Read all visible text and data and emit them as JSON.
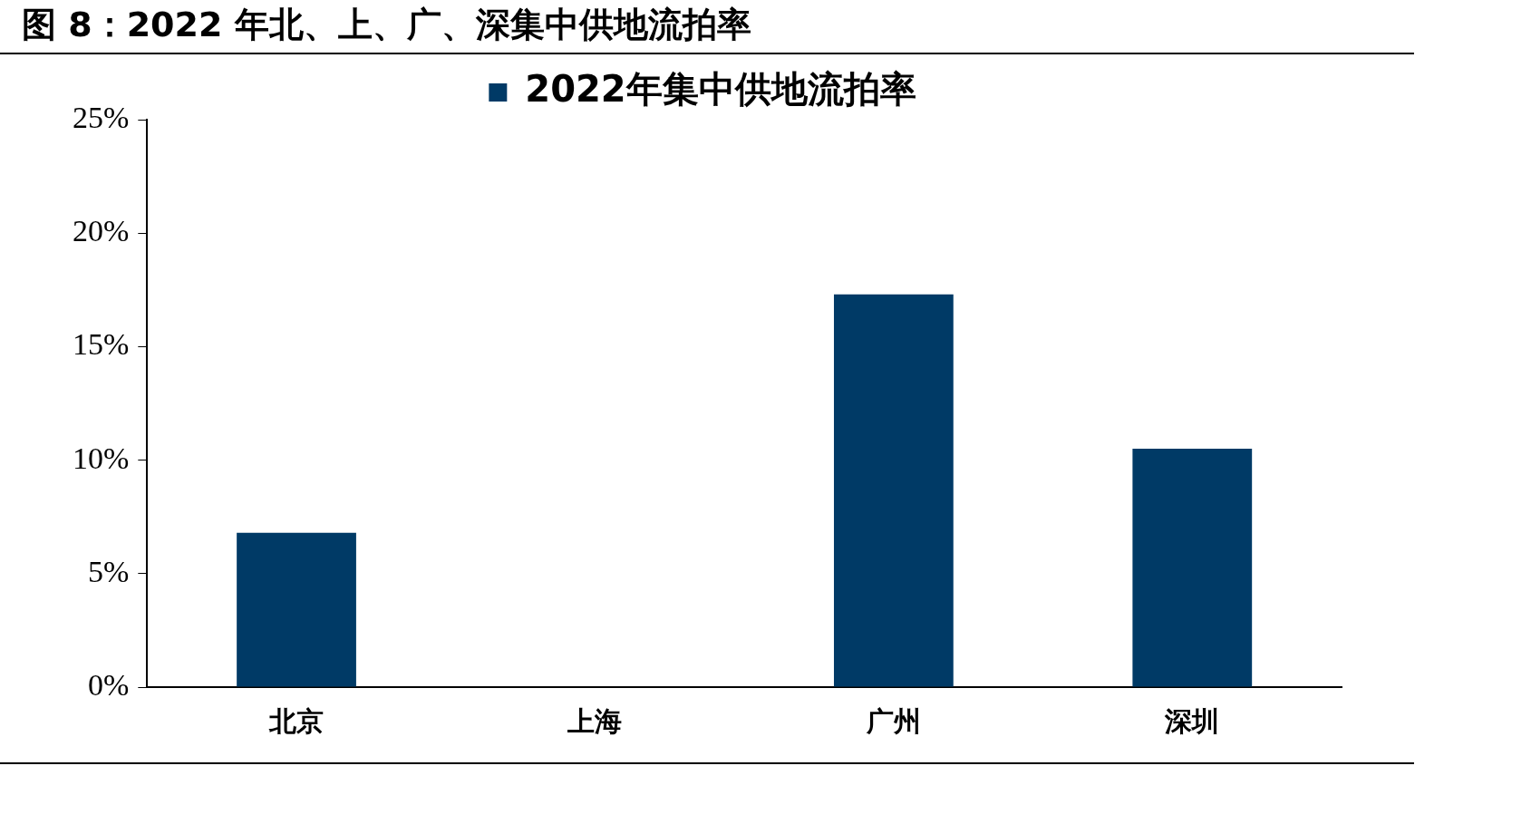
{
  "chart_data": {
    "type": "bar",
    "title": "图 8：2022 年北、上、广、深集中供地流拍率",
    "categories": [
      "北京",
      "上海",
      "广州",
      "深圳"
    ],
    "series": [
      {
        "name": "2022年集中供地流拍率",
        "color": "#003a66",
        "values": [
          6.8,
          0,
          17.3,
          10.5
        ]
      }
    ],
    "ylim": [
      0,
      25
    ],
    "yticks": [
      {
        "value": 0,
        "label": "0%"
      },
      {
        "value": 5,
        "label": "5%"
      },
      {
        "value": 10,
        "label": "10%"
      },
      {
        "value": 15,
        "label": "15%"
      },
      {
        "value": 20,
        "label": "20%"
      },
      {
        "value": 25,
        "label": "25%"
      }
    ],
    "grid": false,
    "legend": "top"
  }
}
